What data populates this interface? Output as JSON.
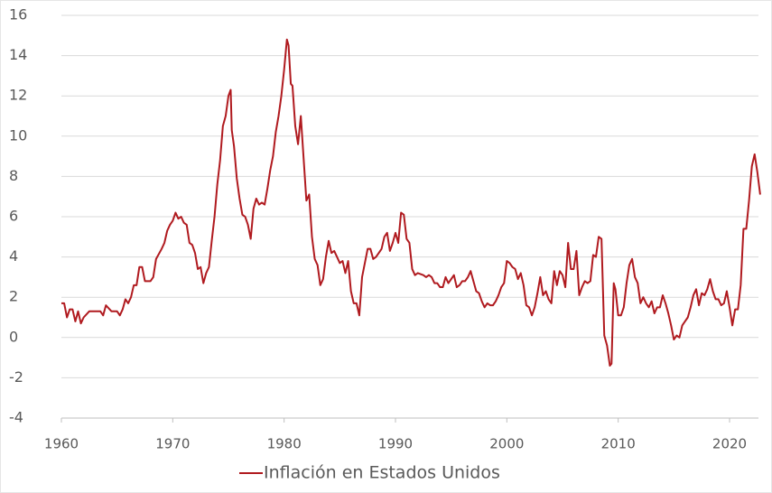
{
  "chart_data": {
    "type": "line",
    "x": [
      1960,
      1960.25,
      1960.5,
      1960.75,
      1961,
      1961.25,
      1961.5,
      1961.75,
      1962,
      1962.5,
      1963,
      1963.5,
      1963.75,
      1964,
      1964.5,
      1965,
      1965.25,
      1965.5,
      1965.75,
      1966,
      1966.25,
      1966.5,
      1966.75,
      1967,
      1967.25,
      1967.5,
      1968,
      1968.25,
      1968.5,
      1969,
      1969.25,
      1969.5,
      1969.75,
      1970,
      1970.25,
      1970.5,
      1970.75,
      1971,
      1971.25,
      1971.5,
      1971.75,
      1972,
      1972.25,
      1972.5,
      1972.75,
      1973,
      1973.25,
      1973.5,
      1973.75,
      1974,
      1974.25,
      1974.5,
      1974.75,
      1975,
      1975.2,
      1975.3,
      1975.5,
      1975.75,
      1976,
      1976.25,
      1976.5,
      1976.75,
      1977,
      1977.25,
      1977.5,
      1977.75,
      1978,
      1978.25,
      1978.5,
      1978.75,
      1979,
      1979.25,
      1979.5,
      1979.75,
      1980,
      1980.25,
      1980.4,
      1980.6,
      1980.75,
      1981,
      1981.25,
      1981.5,
      1981.75,
      1982,
      1982.25,
      1982.5,
      1982.75,
      1983,
      1983.25,
      1983.5,
      1983.75,
      1984,
      1984.25,
      1984.5,
      1984.75,
      1985,
      1985.25,
      1985.5,
      1985.75,
      1986,
      1986.25,
      1986.5,
      1986.75,
      1987,
      1987.25,
      1987.5,
      1987.75,
      1988,
      1988.25,
      1988.5,
      1988.75,
      1989,
      1989.25,
      1989.5,
      1989.75,
      1990,
      1990.25,
      1990.5,
      1990.75,
      1991,
      1991.25,
      1991.5,
      1991.75,
      1992,
      1992.5,
      1992.75,
      1993,
      1993.25,
      1993.5,
      1993.75,
      1994,
      1994.25,
      1994.5,
      1994.75,
      1995,
      1995.25,
      1995.5,
      1995.75,
      1996,
      1996.25,
      1996.5,
      1996.75,
      1997,
      1997.25,
      1997.5,
      1997.75,
      1998,
      1998.25,
      1998.5,
      1998.75,
      1999,
      1999.25,
      1999.5,
      1999.75,
      2000,
      2000.25,
      2000.5,
      2000.75,
      2001,
      2001.25,
      2001.5,
      2001.75,
      2002,
      2002.25,
      2002.5,
      2002.75,
      2003,
      2003.25,
      2003.5,
      2003.75,
      2004,
      2004.25,
      2004.5,
      2004.75,
      2005,
      2005.25,
      2005.5,
      2005.75,
      2006,
      2006.25,
      2006.5,
      2006.75,
      2007,
      2007.25,
      2007.5,
      2007.75,
      2008,
      2008.25,
      2008.5,
      2008.75,
      2009,
      2009.25,
      2009.4,
      2009.6,
      2009.75,
      2010,
      2010.25,
      2010.5,
      2010.75,
      2011,
      2011.25,
      2011.5,
      2011.75,
      2012,
      2012.25,
      2012.5,
      2012.75,
      2013,
      2013.25,
      2013.5,
      2013.75,
      2014,
      2014.25,
      2014.5,
      2014.75,
      2015,
      2015.25,
      2015.5,
      2015.75,
      2016,
      2016.25,
      2016.5,
      2016.75,
      2017,
      2017.25,
      2017.5,
      2017.75,
      2018,
      2018.25,
      2018.5,
      2018.75,
      2019,
      2019.25,
      2019.5,
      2019.75,
      2020,
      2020.25,
      2020.5,
      2020.75,
      2021,
      2021.25,
      2021.5,
      2021.75,
      2022,
      2022.25,
      2022.5,
      2022.75
    ],
    "series": [
      {
        "name": "Inflación en Estados Unidos",
        "color": "#b01a1f",
        "values": [
          1.7,
          1.7,
          1.0,
          1.4,
          1.4,
          0.8,
          1.3,
          0.7,
          1.0,
          1.3,
          1.3,
          1.3,
          1.1,
          1.6,
          1.3,
          1.3,
          1.1,
          1.4,
          1.9,
          1.7,
          2.0,
          2.6,
          2.6,
          3.5,
          3.5,
          2.8,
          2.8,
          3.0,
          3.9,
          4.4,
          4.7,
          5.3,
          5.6,
          5.8,
          6.2,
          5.9,
          6.0,
          5.7,
          5.6,
          4.7,
          4.6,
          4.2,
          3.4,
          3.5,
          2.7,
          3.2,
          3.5,
          4.8,
          6.0,
          7.6,
          8.8,
          10.5,
          11.0,
          12.0,
          12.3,
          10.3,
          9.5,
          7.9,
          6.9,
          6.1,
          6.0,
          5.6,
          4.9,
          6.4,
          6.9,
          6.6,
          6.7,
          6.6,
          7.4,
          8.3,
          9.0,
          10.2,
          11.0,
          12.0,
          13.3,
          14.8,
          14.5,
          12.6,
          12.5,
          10.5,
          9.6,
          11.0,
          8.9,
          6.8,
          7.1,
          5.0,
          3.9,
          3.6,
          2.6,
          2.9,
          4.0,
          4.8,
          4.2,
          4.3,
          4.0,
          3.7,
          3.8,
          3.2,
          3.8,
          2.3,
          1.7,
          1.7,
          1.1,
          3.0,
          3.7,
          4.4,
          4.4,
          3.9,
          4.0,
          4.2,
          4.4,
          5.0,
          5.2,
          4.3,
          4.7,
          5.2,
          4.7,
          6.2,
          6.1,
          4.9,
          4.7,
          3.4,
          3.1,
          3.2,
          3.1,
          3.0,
          3.1,
          3.0,
          2.7,
          2.7,
          2.5,
          2.5,
          3.0,
          2.7,
          2.9,
          3.1,
          2.5,
          2.6,
          2.8,
          2.8,
          3.0,
          3.3,
          2.8,
          2.3,
          2.2,
          1.8,
          1.5,
          1.7,
          1.6,
          1.6,
          1.8,
          2.1,
          2.5,
          2.7,
          3.8,
          3.7,
          3.5,
          3.4,
          2.9,
          3.2,
          2.6,
          1.6,
          1.5,
          1.1,
          1.5,
          2.2,
          3.0,
          2.1,
          2.3,
          1.9,
          1.7,
          3.3,
          2.6,
          3.3,
          3.1,
          2.5,
          4.7,
          3.4,
          3.4,
          4.3,
          2.1,
          2.5,
          2.8,
          2.7,
          2.8,
          4.1,
          4.0,
          5.0,
          4.9,
          0.1,
          -0.4,
          -1.4,
          -1.3,
          2.7,
          2.4,
          1.1,
          1.1,
          1.5,
          2.7,
          3.6,
          3.9,
          3.0,
          2.7,
          1.7,
          2.0,
          1.7,
          1.5,
          1.8,
          1.2,
          1.5,
          1.5,
          2.1,
          1.7,
          1.2,
          0.6,
          -0.1,
          0.1,
          0.0,
          0.6,
          0.8,
          1.0,
          1.5,
          2.1,
          2.4,
          1.6,
          2.2,
          2.1,
          2.4,
          2.9,
          2.3,
          1.9,
          1.9,
          1.6,
          1.7,
          2.3,
          1.5,
          0.6,
          1.4,
          1.4,
          2.6,
          5.4,
          5.4,
          6.8,
          8.5,
          9.1,
          8.2,
          7.1
        ]
      }
    ],
    "xlim": [
      1960,
      2023
    ],
    "xticks": [
      1960,
      1970,
      1980,
      1990,
      2000,
      2010,
      2020
    ],
    "ylim": [
      -4,
      16
    ],
    "yticks": [
      -4,
      -2,
      0,
      2,
      4,
      6,
      8,
      10,
      12,
      14,
      16
    ],
    "grid": true,
    "legend": "bottom"
  }
}
